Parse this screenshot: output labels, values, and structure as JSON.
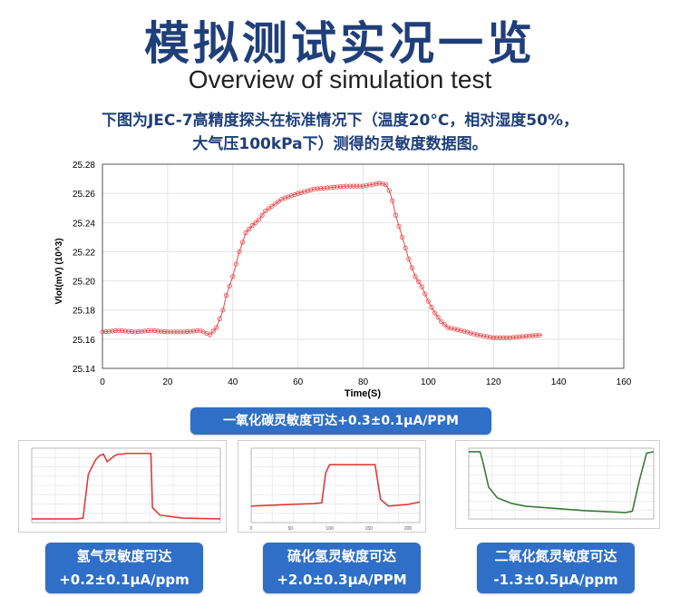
{
  "header": {
    "title_cn": "模拟测试实况一览",
    "title_en": "Overview of simulation test",
    "desc_line1": "下图为JEC-7高精度探头在标准情况下（温度20°C，相对湿度50%，",
    "desc_line2": "大气压100kPa下）测得的灵敏度数据图。"
  },
  "badges": {
    "co": "一氧化碳灵敏度可达+0.3±0.1μA/PPM",
    "h2_line1": "氢气灵敏度可达",
    "h2_line2": "+0.2±0.1μA/ppm",
    "h2s_line1": "硫化氢灵敏度可达",
    "h2s_line2": "+2.0±0.3μA/PPM",
    "no2_line1": "二氧化氮灵敏度可达",
    "no2_line2": "-1.3±0.5μA/ppm"
  },
  "colors": {
    "title": "#1f3f7a",
    "badge": "#2f6fc7",
    "main_series": "#e8484a",
    "h2_series": "#e03a3a",
    "h2s_series": "#e03a3a",
    "no2_series": "#3a7a3a"
  },
  "chart_data": [
    {
      "type": "scatter",
      "xlabel": "Time(S)",
      "ylabel": "Vlot(mV) (10^3)",
      "xlim": [
        0,
        160
      ],
      "ylim": [
        25.14,
        25.28
      ],
      "xticks": [
        "0",
        "20",
        "40",
        "60",
        "80",
        "100",
        "120",
        "140",
        "160"
      ],
      "yticks": [
        "25.28",
        "25.26",
        "25.24",
        "25.22",
        "25.20",
        "25.18",
        "25.16",
        "25.14"
      ],
      "grid": true,
      "series": [
        {
          "x": [
            0,
            5,
            10,
            15,
            20,
            25,
            30,
            33,
            35,
            37,
            38,
            40,
            42,
            44,
            46,
            48,
            50,
            55,
            60,
            65,
            70,
            75,
            80,
            85,
            87,
            88,
            89,
            90,
            92,
            94,
            96,
            98,
            100,
            102,
            104,
            106,
            110,
            115,
            120,
            125,
            130,
            135
          ],
          "y": [
            25.165,
            25.166,
            25.165,
            25.166,
            25.165,
            25.165,
            25.166,
            25.163,
            25.168,
            25.18,
            25.19,
            25.203,
            25.22,
            25.233,
            25.238,
            25.242,
            25.248,
            25.256,
            25.26,
            25.263,
            25.264,
            25.265,
            25.265,
            25.267,
            25.266,
            25.262,
            25.255,
            25.245,
            25.23,
            25.215,
            25.203,
            25.196,
            25.186,
            25.178,
            25.172,
            25.168,
            25.166,
            25.163,
            25.161,
            25.161,
            25.162,
            25.163
          ]
        }
      ]
    },
    {
      "type": "line",
      "series": [
        {
          "name": "",
          "x": [
            0,
            60,
            68,
            75,
            85,
            90,
            95,
            100,
            110,
            115,
            120,
            125,
            150,
            158,
            160,
            170,
            200,
            250
          ],
          "y": [
            0.05,
            0.05,
            0.06,
            0.65,
            0.85,
            0.9,
            0.92,
            0.82,
            0.9,
            0.92,
            0.92,
            0.93,
            0.93,
            0.93,
            0.2,
            0.1,
            0.06,
            0.05
          ]
        }
      ]
    },
    {
      "type": "line",
      "xticks": [
        "0",
        "50",
        "100",
        "150",
        "200"
      ],
      "series": [
        {
          "name": "",
          "x": [
            0,
            50,
            80,
            90,
            95,
            100,
            110,
            130,
            150,
            158,
            165,
            175,
            200,
            215
          ],
          "y": [
            25.16,
            25.162,
            25.163,
            25.164,
            25.2,
            25.21,
            25.21,
            25.21,
            25.21,
            25.21,
            25.168,
            25.16,
            25.162,
            25.165
          ]
        }
      ]
    },
    {
      "type": "line",
      "series": [
        {
          "name": "",
          "x": [
            0,
            8,
            10,
            14,
            20,
            30,
            40,
            60,
            80,
            100,
            110,
            115,
            120,
            125,
            130
          ],
          "y": [
            0.95,
            0.95,
            0.8,
            0.45,
            0.3,
            0.22,
            0.18,
            0.15,
            0.12,
            0.1,
            0.09,
            0.11,
            0.55,
            0.93,
            0.95
          ]
        }
      ]
    }
  ]
}
